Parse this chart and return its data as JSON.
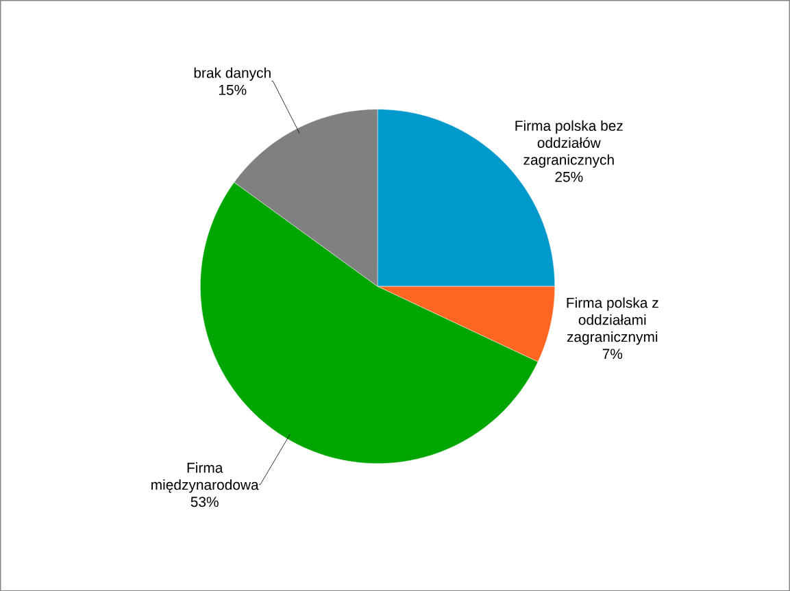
{
  "chart_data": {
    "type": "pie",
    "categories": [
      "Firma polska bez oddziałów zagranicznych",
      "Firma polska z oddziałami zagranicznymi",
      "Firma międzynarodowa",
      "brak danych"
    ],
    "values": [
      25,
      7,
      53,
      15
    ],
    "colors": [
      "#0099cc",
      "#ff6622",
      "#00a600",
      "#808080"
    ],
    "value_labels": [
      "25%",
      "7%",
      "53%",
      "15%"
    ]
  }
}
